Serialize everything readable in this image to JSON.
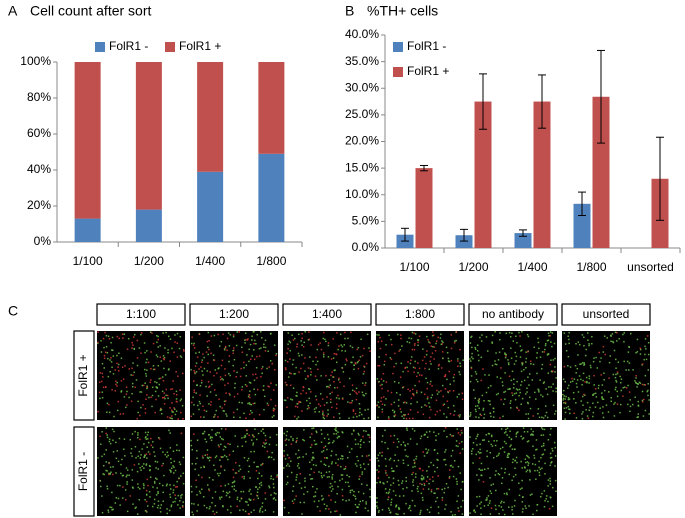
{
  "chart_data": [
    {
      "type": "stacked_bar",
      "panel_label": "A",
      "title": "Cell count after sort",
      "categories": [
        "1/100",
        "1/200",
        "1/400",
        "1/800"
      ],
      "series": [
        {
          "name": "FolR1 -",
          "color": "#4f81bd",
          "values": [
            13,
            18,
            39,
            49
          ]
        },
        {
          "name": "FolR1 +",
          "color": "#c0504d",
          "values": [
            87,
            82,
            61,
            51
          ]
        }
      ],
      "ylim": [
        0,
        100
      ],
      "yticks": [
        {
          "value": 0,
          "label": "0%"
        },
        {
          "value": 20,
          "label": "20%"
        },
        {
          "value": 40,
          "label": "40%"
        },
        {
          "value": 60,
          "label": "60%"
        },
        {
          "value": 80,
          "label": "80%"
        },
        {
          "value": 100,
          "label": "100%"
        }
      ],
      "legend": "top",
      "grid": false
    },
    {
      "type": "grouped_bar",
      "panel_label": "B",
      "title": "%TH+ cells",
      "categories": [
        "1/100",
        "1/200",
        "1/400",
        "1/800",
        "unsorted"
      ],
      "series": [
        {
          "name": "FolR1 -",
          "color": "#4f81bd",
          "values": [
            2.5,
            2.4,
            2.8,
            8.3,
            null
          ],
          "errors": [
            1.2,
            1.1,
            0.6,
            2.2,
            null
          ]
        },
        {
          "name": "FolR1 +",
          "color": "#c0504d",
          "values": [
            15.0,
            27.5,
            27.5,
            28.4,
            13.0
          ],
          "errors": [
            0.5,
            5.2,
            5.0,
            8.7,
            7.8
          ]
        }
      ],
      "ylim": [
        0,
        40
      ],
      "yticks": [
        {
          "value": 0,
          "label": "0.0%"
        },
        {
          "value": 5,
          "label": "5.0%"
        },
        {
          "value": 10,
          "label": "10.0%"
        },
        {
          "value": 15,
          "label": "15.0%"
        },
        {
          "value": 20,
          "label": "20.0%"
        },
        {
          "value": 25,
          "label": "25.0%"
        },
        {
          "value": 30,
          "label": "30.0%"
        },
        {
          "value": 35,
          "label": "35.0%"
        },
        {
          "value": 40,
          "label": "40.0%"
        }
      ],
      "legend": "top-left",
      "grid": false
    }
  ],
  "image_panel": {
    "panel_label": "C",
    "columns": [
      "1:100",
      "1:200",
      "1:400",
      "1:800",
      "no antibody",
      "unsorted"
    ],
    "rows": [
      "FolR1 +",
      "FolR1 -"
    ]
  }
}
